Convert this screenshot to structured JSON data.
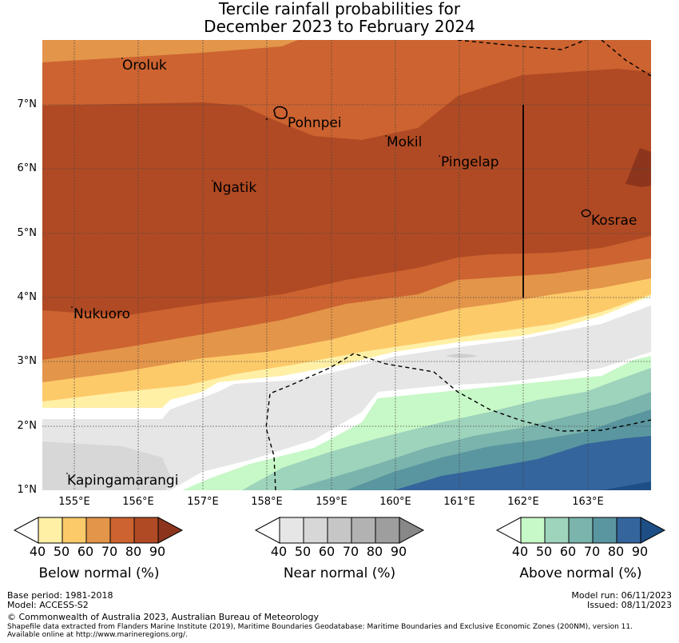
{
  "title": {
    "line1": "Tercile rainfall probabilities for",
    "line2": "December 2023 to February 2024"
  },
  "map": {
    "lat_labels": [
      "7°N",
      "6°N",
      "5°N",
      "4°N",
      "3°N",
      "2°N",
      "1°N"
    ],
    "lon_labels": [
      "155°E",
      "156°E",
      "157°E",
      "158°E",
      "159°E",
      "160°E",
      "161°E",
      "162°E",
      "163°E"
    ],
    "places": {
      "oroluk": "Oroluk",
      "pohnpei": "Pohnpei",
      "mokil": "Mokil",
      "pingelap": "Pingelap",
      "ngatik": "Ngatik",
      "kosrae": "Kosrae",
      "nukuoro": "Nukuoro",
      "kapingamarangi": "Kapingamarangi"
    }
  },
  "legend": {
    "below": {
      "title": "Below normal (%)",
      "ticks": [
        "40",
        "50",
        "60",
        "70",
        "80",
        "90"
      ],
      "colors": [
        "#fff0a6",
        "#fdca6a",
        "#e3954a",
        "#cc6330",
        "#b04a24",
        "#8c351c"
      ]
    },
    "near": {
      "title": "Near normal (%)",
      "ticks": [
        "40",
        "50",
        "60",
        "70",
        "80",
        "90"
      ],
      "colors": [
        "#e6e6e6",
        "#d7d7d7",
        "#c6c6c6",
        "#b2b2b2",
        "#9e9e9e",
        "#888888"
      ]
    },
    "above": {
      "title": "Above normal (%)",
      "ticks": [
        "40",
        "50",
        "60",
        "70",
        "80",
        "90"
      ],
      "colors": [
        "#c7f8c7",
        "#9ed3bc",
        "#7ab4ac",
        "#5a96a0",
        "#34659c",
        "#1d4f86"
      ]
    }
  },
  "footer": {
    "base_period": "Base period: 1981-2018",
    "model": "Model: ACCESS-S2",
    "model_run": "Model run: 06/11/2023",
    "issued": "Issued: 08/11/2023",
    "copyright": "© Commonwealth of Australia 2023, Australian Bureau of Meteorology",
    "shapefile1": "Shapefile data extracted from Flanders Marine Institute (2019), Maritime Boundaries Geodatabase: Maritime Boundaries and Exclusive Economic Zones (200NM), version 11.",
    "shapefile2": "Available online at http://www.marineregions.org/."
  }
}
